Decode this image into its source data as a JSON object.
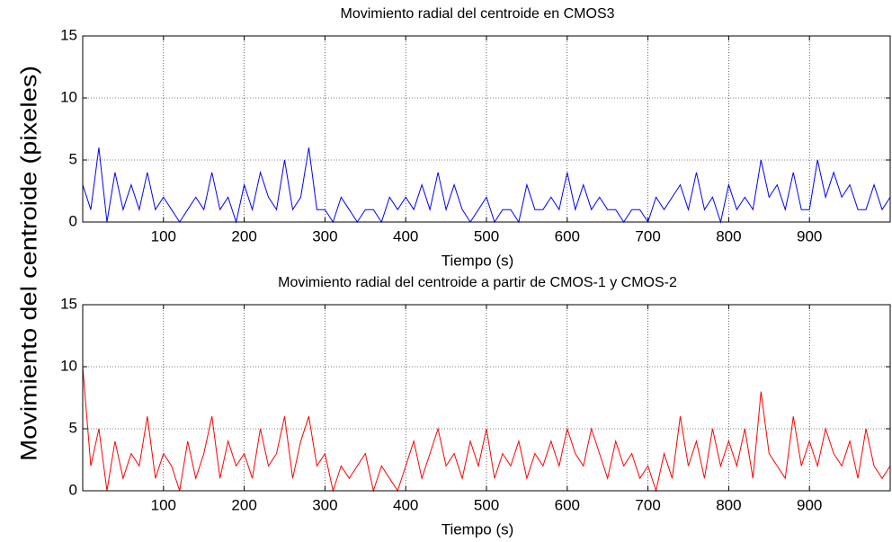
{
  "chart_data": [
    {
      "type": "line",
      "title": "Movimiento radial del centroide en CMOS3",
      "xlabel": "Tiempo (s)",
      "ylabel": "Movimiento del centroide (pixeles)",
      "x": [
        0,
        10,
        20,
        30,
        40,
        50,
        60,
        70,
        80,
        90,
        100,
        110,
        120,
        130,
        140,
        150,
        160,
        170,
        180,
        190,
        200,
        210,
        220,
        230,
        240,
        250,
        260,
        270,
        280,
        290,
        300,
        310,
        320,
        330,
        340,
        350,
        360,
        370,
        380,
        390,
        400,
        410,
        420,
        430,
        440,
        450,
        460,
        470,
        480,
        490,
        500,
        510,
        520,
        530,
        540,
        550,
        560,
        570,
        580,
        590,
        600,
        610,
        620,
        630,
        640,
        650,
        660,
        670,
        680,
        690,
        700,
        710,
        720,
        730,
        740,
        750,
        760,
        770,
        780,
        790,
        800,
        810,
        820,
        830,
        840,
        850,
        860,
        870,
        880,
        890,
        900,
        910,
        920,
        930,
        940,
        950,
        960,
        970,
        980,
        990,
        1000
      ],
      "series": [
        {
          "color": "#0000ff",
          "values": [
            3,
            1,
            6,
            0,
            4,
            1,
            3,
            1,
            4,
            1,
            2,
            1,
            0,
            1,
            2,
            1,
            4,
            1,
            2,
            0,
            3,
            1,
            4,
            2,
            1,
            5,
            1,
            2,
            6,
            1,
            1,
            0,
            2,
            1,
            0,
            1,
            1,
            0,
            2,
            1,
            2,
            1,
            3,
            1,
            4,
            1,
            3,
            1,
            0,
            1,
            2,
            0,
            1,
            1,
            0,
            3,
            1,
            1,
            2,
            1,
            4,
            1,
            3,
            1,
            2,
            1,
            1,
            0,
            1,
            1,
            0,
            2,
            1,
            2,
            3,
            1,
            4,
            1,
            2,
            0,
            3,
            1,
            2,
            1,
            5,
            2,
            3,
            1,
            4,
            1,
            1,
            5,
            2,
            4,
            2,
            3,
            1,
            1,
            3,
            1,
            2
          ]
        }
      ],
      "xlim": [
        0,
        1000
      ],
      "ylim": [
        0,
        15
      ],
      "xticks": [
        100,
        200,
        300,
        400,
        500,
        600,
        700,
        800,
        900
      ],
      "yticks": [
        0,
        5,
        10,
        15
      ],
      "grid": true
    },
    {
      "type": "line",
      "title": "Movimiento radial del centroide a partir de CMOS-1 y CMOS-2",
      "xlabel": "Tiempo (s)",
      "x": [
        0,
        10,
        20,
        30,
        40,
        50,
        60,
        70,
        80,
        90,
        100,
        110,
        120,
        130,
        140,
        150,
        160,
        170,
        180,
        190,
        200,
        210,
        220,
        230,
        240,
        250,
        260,
        270,
        280,
        290,
        300,
        310,
        320,
        330,
        340,
        350,
        360,
        370,
        380,
        390,
        400,
        410,
        420,
        430,
        440,
        450,
        460,
        470,
        480,
        490,
        500,
        510,
        520,
        530,
        540,
        550,
        560,
        570,
        580,
        590,
        600,
        610,
        620,
        630,
        640,
        650,
        660,
        670,
        680,
        690,
        700,
        710,
        720,
        730,
        740,
        750,
        760,
        770,
        780,
        790,
        800,
        810,
        820,
        830,
        840,
        850,
        860,
        870,
        880,
        890,
        900,
        910,
        920,
        930,
        940,
        950,
        960,
        970,
        980,
        990,
        1000
      ],
      "series": [
        {
          "color": "#ff0000",
          "values": [
            10,
            2,
            5,
            0,
            4,
            1,
            3,
            2,
            6,
            1,
            3,
            2,
            0,
            4,
            1,
            3,
            6,
            1,
            4,
            2,
            3,
            1,
            5,
            2,
            3,
            6,
            1,
            4,
            6,
            2,
            3,
            0,
            2,
            1,
            2,
            3,
            0,
            2,
            1,
            0,
            2,
            4,
            1,
            3,
            5,
            2,
            3,
            1,
            4,
            2,
            5,
            1,
            3,
            2,
            4,
            1,
            3,
            2,
            4,
            2,
            5,
            3,
            2,
            5,
            3,
            1,
            4,
            2,
            3,
            1,
            2,
            0,
            3,
            1,
            6,
            2,
            4,
            1,
            5,
            2,
            4,
            2,
            5,
            1,
            8,
            3,
            2,
            1,
            6,
            2,
            4,
            2,
            5,
            3,
            2,
            4,
            1,
            5,
            2,
            1,
            2
          ]
        }
      ],
      "xlim": [
        0,
        1000
      ],
      "ylim": [
        0,
        15
      ],
      "xticks": [
        100,
        200,
        300,
        400,
        500,
        600,
        700,
        800,
        900
      ],
      "yticks": [
        0,
        5,
        10,
        15
      ],
      "grid": true
    }
  ]
}
